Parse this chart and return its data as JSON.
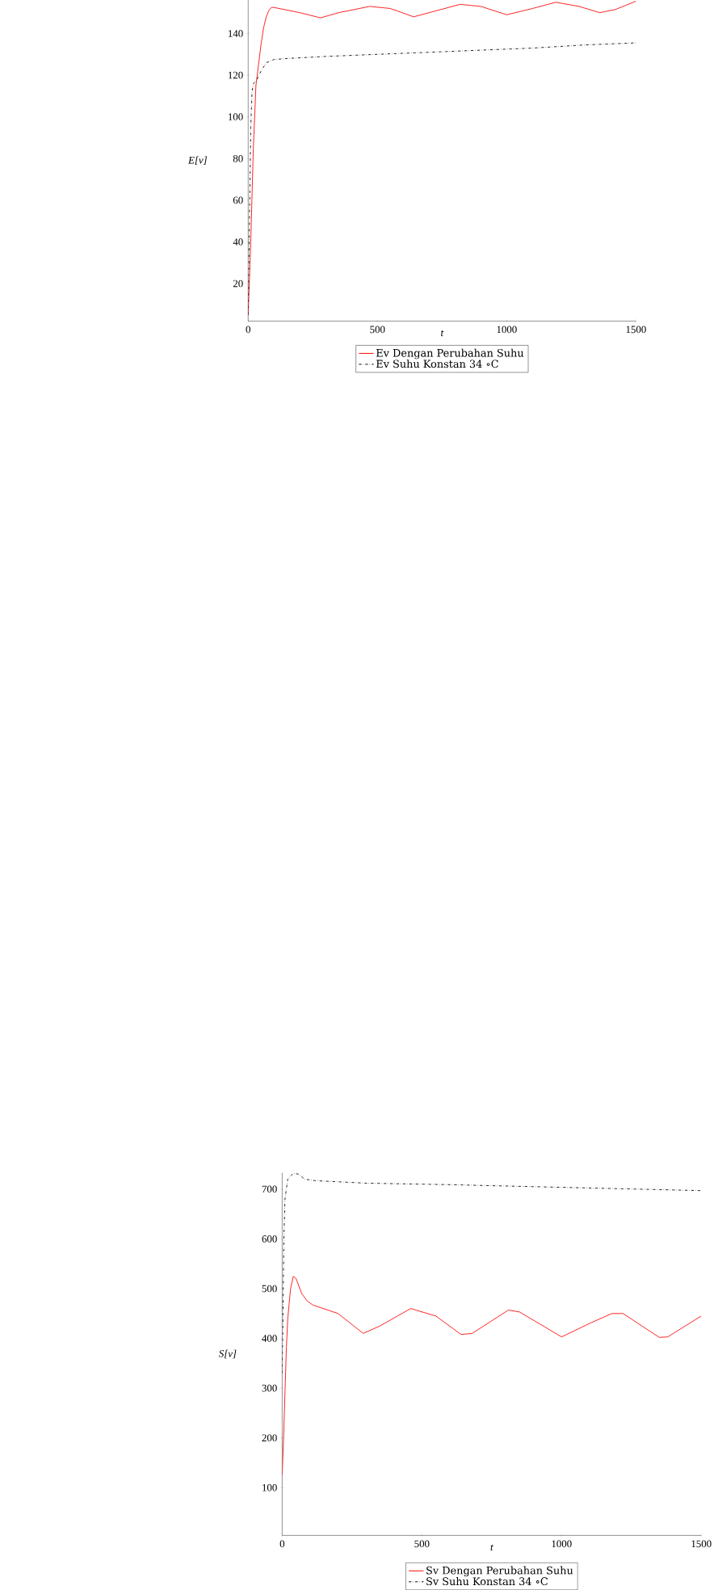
{
  "chart_data": [
    {
      "type": "line",
      "xlabel": "t",
      "ylabel": "E[v]",
      "xlim": [
        0,
        1500
      ],
      "ylim": [
        2,
        156
      ],
      "xticks": [
        0,
        500,
        1000,
        1500
      ],
      "yticks": [
        20,
        40,
        60,
        80,
        100,
        120,
        140
      ],
      "legend": "bottom",
      "grid": false,
      "series": [
        {
          "name": "Ev Dengan Perubahan Suhu",
          "color": "#ff0000",
          "line_style": "solid",
          "x": [
            0,
            10,
            20,
            30,
            40,
            50,
            60,
            70,
            80,
            90,
            100,
            200,
            280,
            350,
            470,
            550,
            640,
            700,
            820,
            900,
            1000,
            1100,
            1190,
            1280,
            1360,
            1420,
            1500
          ],
          "values": [
            5,
            40,
            85,
            115,
            125,
            135,
            143,
            148,
            151,
            152.5,
            152.5,
            150,
            147.5,
            150,
            153,
            152,
            148,
            150,
            154,
            153,
            149,
            152,
            155,
            153,
            150,
            151.5,
            155.5
          ]
        },
        {
          "name": "Ev Suhu Konstan 34 ∘C",
          "color": "#000000",
          "line_style": "dashdot",
          "x": [
            0,
            5,
            10,
            15,
            20,
            30,
            50,
            70,
            100,
            150,
            300,
            500,
            700,
            900,
            1100,
            1300,
            1500
          ],
          "values": [
            5,
            50,
            95,
            112,
            116,
            117,
            122,
            126,
            127.5,
            128,
            129,
            130,
            131,
            132,
            133,
            134.5,
            135.5
          ]
        }
      ]
    },
    {
      "type": "line",
      "xlabel": "t",
      "ylabel": "S[v]",
      "xlim": [
        0,
        1500
      ],
      "ylim": [
        4,
        733
      ],
      "xticks": [
        0,
        500,
        1000,
        1500
      ],
      "yticks": [
        100,
        200,
        300,
        400,
        500,
        600,
        700
      ],
      "legend": "bottom",
      "grid": false,
      "series": [
        {
          "name": "Sv Dengan Perubahan Suhu",
          "color": "#ff0000",
          "line_style": "solid",
          "x": [
            0,
            5,
            10,
            15,
            20,
            30,
            40,
            50,
            70,
            90,
            110,
            200,
            290,
            350,
            460,
            550,
            640,
            680,
            810,
            850,
            1000,
            1100,
            1180,
            1220,
            1350,
            1380,
            1500
          ],
          "values": [
            125,
            200,
            290,
            380,
            440,
            500,
            525,
            520,
            490,
            475,
            467,
            450,
            410,
            425,
            460,
            445,
            408,
            410,
            457,
            453,
            403,
            430,
            450,
            450,
            402,
            403,
            445
          ]
        },
        {
          "name": "Sv Suhu Konstan 34 ∘C",
          "color": "#000000",
          "line_style": "dashdot",
          "x": [
            0,
            3,
            6,
            10,
            20,
            40,
            60,
            80,
            120,
            300,
            600,
            900,
            1200,
            1500
          ],
          "values": [
            330,
            450,
            600,
            680,
            720,
            732,
            730,
            720,
            717,
            712,
            709,
            705,
            701,
            697
          ]
        }
      ]
    }
  ]
}
